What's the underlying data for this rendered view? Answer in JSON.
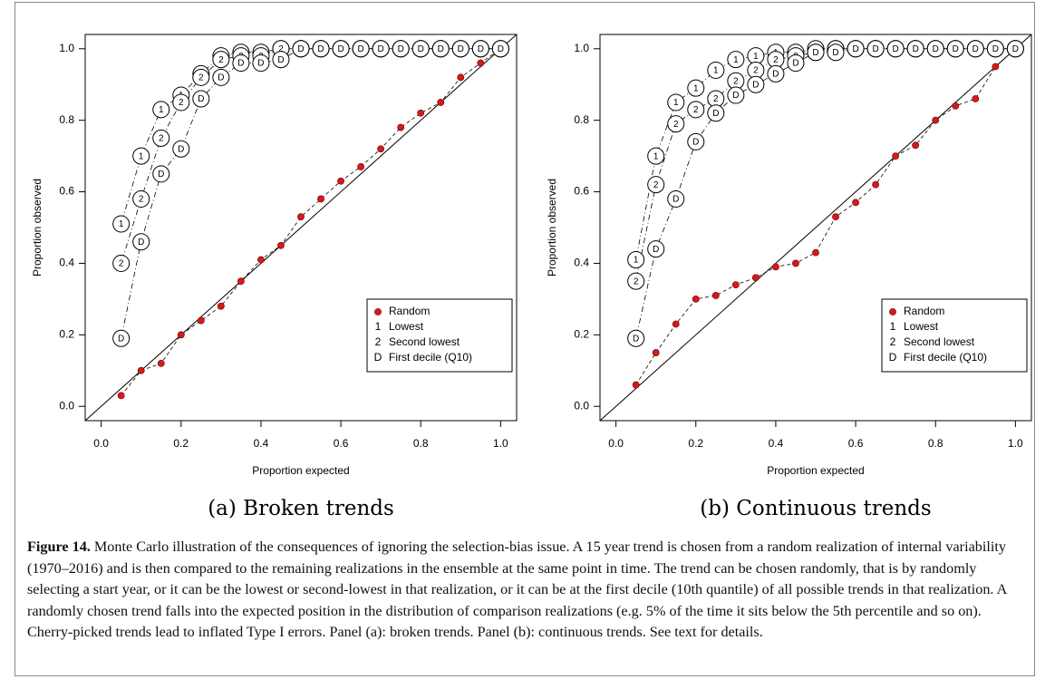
{
  "chart_data": [
    {
      "type": "line",
      "title": "(a) Broken trends",
      "xlabel": "Proportion expected",
      "ylabel": "Proportion observed",
      "x": [
        0.05,
        0.1,
        0.15,
        0.2,
        0.25,
        0.3,
        0.35,
        0.4,
        0.45,
        0.5,
        0.55,
        0.6,
        0.65,
        0.7,
        0.75,
        0.8,
        0.85,
        0.9,
        0.95,
        1.0
      ],
      "series": [
        {
          "name": "Random",
          "color": "#d7191c",
          "style": "dashed",
          "values": [
            0.03,
            0.1,
            0.12,
            0.2,
            0.24,
            0.28,
            0.35,
            0.41,
            0.45,
            0.53,
            0.58,
            0.63,
            0.67,
            0.72,
            0.78,
            0.82,
            0.85,
            0.92,
            0.96,
            1.0
          ]
        },
        {
          "name": "Lowest",
          "marker": "1",
          "color": "#000000",
          "style": "dotdash",
          "values": [
            0.51,
            0.7,
            0.83,
            0.87,
            0.93,
            0.98,
            0.99,
            0.99,
            1.0,
            1.0,
            1.0,
            1.0,
            1.0,
            1.0,
            1.0,
            1.0,
            1.0,
            1.0,
            1.0,
            1.0
          ]
        },
        {
          "name": "Second lowest",
          "marker": "2",
          "color": "#000000",
          "style": "dotdash",
          "values": [
            0.4,
            0.58,
            0.75,
            0.85,
            0.92,
            0.97,
            0.98,
            0.98,
            1.0,
            1.0,
            1.0,
            1.0,
            1.0,
            1.0,
            1.0,
            1.0,
            1.0,
            1.0,
            1.0,
            1.0
          ]
        },
        {
          "name": "First decile (Q10)",
          "marker": "D",
          "color": "#000000",
          "style": "dotdash",
          "values": [
            0.19,
            0.46,
            0.65,
            0.72,
            0.86,
            0.92,
            0.96,
            0.96,
            0.97,
            1.0,
            1.0,
            1.0,
            1.0,
            1.0,
            1.0,
            1.0,
            1.0,
            1.0,
            1.0,
            1.0
          ]
        }
      ],
      "xlim": [
        -0.04,
        1.04
      ],
      "ylim": [
        -0.04,
        1.04
      ],
      "xticks": [
        {
          "value": 0,
          "label": "0.0"
        },
        0.2,
        0.4,
        0.6,
        0.8,
        {
          "value": 1,
          "label": "1.0"
        }
      ],
      "yticks": [
        {
          "value": 0,
          "label": "0.0"
        },
        0.2,
        0.4,
        0.6,
        0.8,
        {
          "value": 1,
          "label": "1.0"
        }
      ],
      "diagonal": true,
      "legend": "bottomright"
    },
    {
      "type": "line",
      "title": "(b) Continuous trends",
      "xlabel": "Proportion expected",
      "ylabel": "Proportion observed",
      "x": [
        0.05,
        0.1,
        0.15,
        0.2,
        0.25,
        0.3,
        0.35,
        0.4,
        0.45,
        0.5,
        0.55,
        0.6,
        0.65,
        0.7,
        0.75,
        0.8,
        0.85,
        0.9,
        0.95,
        1.0
      ],
      "series": [
        {
          "name": "Random",
          "color": "#d7191c",
          "style": "dashed",
          "values": [
            0.06,
            0.15,
            0.23,
            0.3,
            0.31,
            0.34,
            0.36,
            0.39,
            0.4,
            0.43,
            0.53,
            0.57,
            0.62,
            0.7,
            0.73,
            0.8,
            0.84,
            0.86,
            0.95,
            1.0
          ]
        },
        {
          "name": "Lowest",
          "marker": "1",
          "color": "#000000",
          "style": "dotdash",
          "values": [
            0.41,
            0.7,
            0.85,
            0.89,
            0.94,
            0.97,
            0.98,
            0.99,
            0.99,
            1.0,
            1.0,
            1.0,
            1.0,
            1.0,
            1.0,
            1.0,
            1.0,
            1.0,
            1.0,
            1.0
          ]
        },
        {
          "name": "Second lowest",
          "marker": "2",
          "color": "#000000",
          "style": "dotdash",
          "values": [
            0.35,
            0.62,
            0.79,
            0.83,
            0.86,
            0.91,
            0.94,
            0.97,
            0.98,
            0.99,
            1.0,
            1.0,
            1.0,
            1.0,
            1.0,
            1.0,
            1.0,
            1.0,
            1.0,
            1.0
          ]
        },
        {
          "name": "First decile (Q10)",
          "marker": "D",
          "color": "#000000",
          "style": "dotdash",
          "values": [
            0.19,
            0.44,
            0.58,
            0.74,
            0.82,
            0.87,
            0.9,
            0.93,
            0.96,
            0.99,
            0.99,
            1.0,
            1.0,
            1.0,
            1.0,
            1.0,
            1.0,
            1.0,
            1.0,
            1.0
          ]
        }
      ],
      "xlim": [
        -0.04,
        1.04
      ],
      "ylim": [
        -0.04,
        1.04
      ],
      "xticks": [
        {
          "value": 0,
          "label": "0.0"
        },
        0.2,
        0.4,
        0.6,
        0.8,
        {
          "value": 1,
          "label": "1.0"
        }
      ],
      "yticks": [
        {
          "value": 0,
          "label": "0.0"
        },
        0.2,
        0.4,
        0.6,
        0.8,
        {
          "value": 1,
          "label": "1.0"
        }
      ],
      "diagonal": true,
      "legend": "bottomright"
    }
  ],
  "figure": {
    "label": "Figure 14.",
    "caption": "Monte Carlo illustration of the consequences of ignoring the selection-bias issue. A 15 year trend is chosen from a random realization of internal variability (1970–2016) and is then compared to the remaining realizations in the ensemble at the same point in time. The trend can be chosen randomly, that is by randomly selecting a start year, or it can be the lowest or second-lowest in that realization, or it can be at the first decile (10th quantile) of all possible trends in that realization. A randomly chosen trend falls into the expected position in the distribution of comparison realizations (e.g. 5% of the time it sits below the 5th percentile and so on). Cherry-picked trends lead to inflated Type I errors. Panel (a): broken trends. Panel (b): continuous trends. See text for details."
  }
}
